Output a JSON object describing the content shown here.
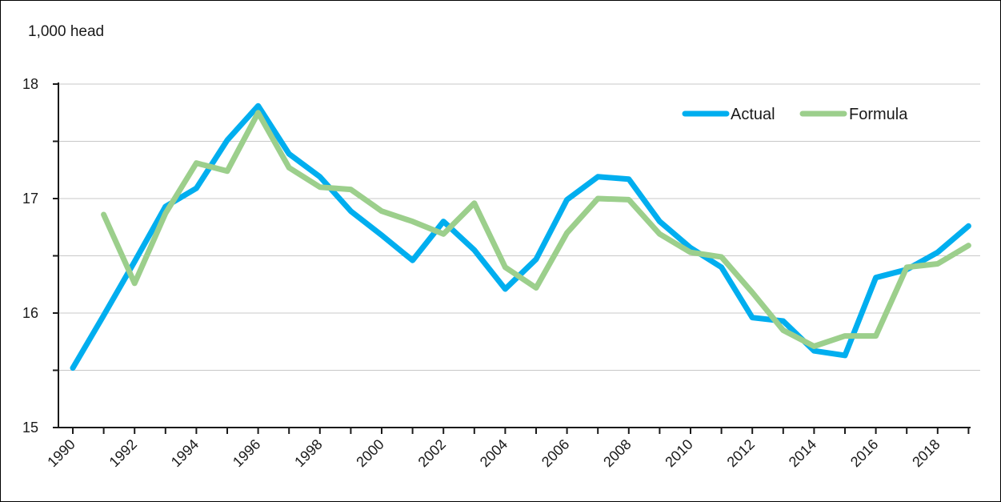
{
  "chart_data": {
    "type": "line",
    "ylabel": "1,000 head",
    "ylim": [
      15,
      18
    ],
    "y_major_ticks": [
      15,
      16,
      17,
      18
    ],
    "y_minor_ticks": [
      15.5,
      16.5,
      17.5
    ],
    "x": [
      1990,
      1991,
      1992,
      1993,
      1994,
      1995,
      1996,
      1997,
      1998,
      1999,
      2000,
      2001,
      2002,
      2003,
      2004,
      2005,
      2006,
      2007,
      2008,
      2009,
      2010,
      2011,
      2012,
      2013,
      2014,
      2015,
      2016,
      2017,
      2018,
      2019
    ],
    "x_tick_labels": [
      "1990",
      "1992",
      "1994",
      "1996",
      "1998",
      "2000",
      "2002",
      "2004",
      "2006",
      "2008",
      "2010",
      "2012",
      "2014",
      "2016",
      "2018"
    ],
    "grid": "horizontal",
    "legend_position": "top-right",
    "series": [
      {
        "name": "Actual",
        "color": "#00AEEF",
        "values": [
          15.52,
          15.98,
          16.45,
          16.93,
          17.09,
          17.51,
          17.81,
          17.39,
          17.19,
          16.89,
          16.68,
          16.46,
          16.8,
          16.55,
          16.21,
          16.47,
          16.99,
          17.19,
          17.17,
          16.8,
          16.57,
          16.4,
          15.96,
          15.93,
          15.67,
          15.63,
          16.31,
          16.38,
          16.53,
          16.76
        ]
      },
      {
        "name": "Formula",
        "color": "#9CCF8C",
        "values": [
          null,
          16.86,
          16.26,
          16.87,
          17.31,
          17.24,
          17.75,
          17.27,
          17.1,
          17.08,
          16.89,
          16.8,
          16.69,
          16.96,
          16.4,
          16.22,
          16.7,
          17.0,
          16.99,
          16.69,
          16.53,
          16.49,
          16.18,
          15.85,
          15.71,
          15.8,
          15.8,
          16.4,
          16.43,
          16.59
        ]
      }
    ]
  }
}
